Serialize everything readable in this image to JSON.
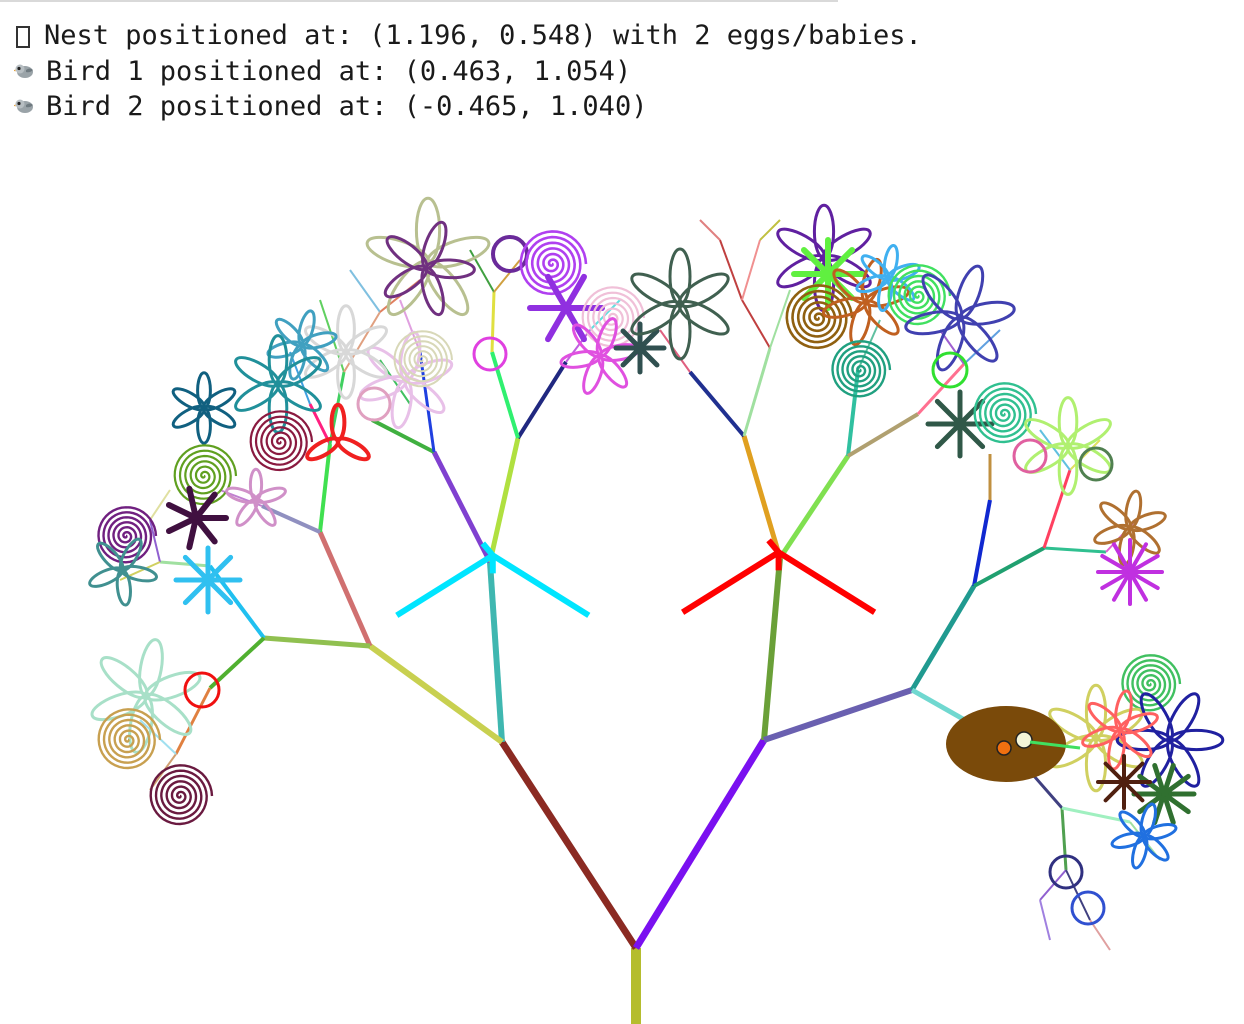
{
  "log": {
    "nest_line": "Nest positioned at: (1.196, 0.548) with 2 eggs/babies.",
    "bird1_line": "Bird 1 positioned at: (0.463, 1.054)",
    "bird2_line": "Bird 2 positioned at: (-0.465, 1.040)",
    "nest_icon": "missing-glyph-box",
    "bird_icon": "bird-emoji"
  },
  "scene": {
    "nest": {
      "x": 1.196,
      "y": 0.548,
      "eggs": 2,
      "color": "#7a4a0a"
    },
    "birds": [
      {
        "id": 1,
        "x": 0.463,
        "y": 1.054,
        "color": "#ff0000"
      },
      {
        "id": 2,
        "x": -0.465,
        "y": 1.04,
        "color": "#00e5ff"
      }
    ],
    "trunk_color": "#b5bd2e"
  }
}
